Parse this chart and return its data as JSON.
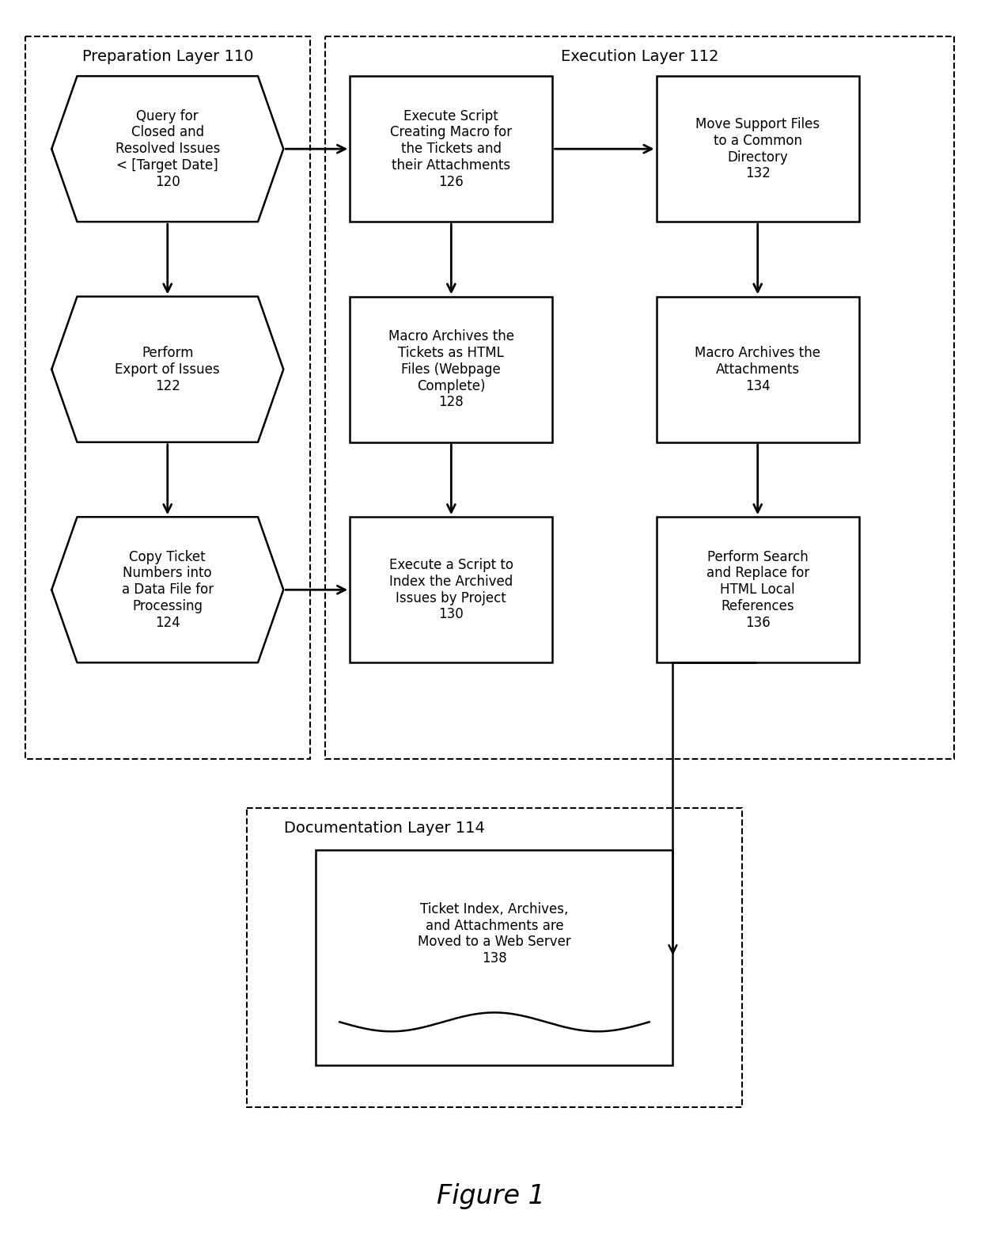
{
  "fig_width": 12.4,
  "fig_height": 15.82,
  "bg_color": "#ffffff",
  "title": "Figure 1",
  "title_fontsize": 24,
  "label_fontsize": 14,
  "small_fontsize": 12,
  "prep_layer_label": "Preparation Layer 110",
  "exec_layer_label": "Execution Layer 112",
  "doc_layer_label": "Documentation Layer 114",
  "hex120_text": "Query for\nClosed and\nResolved Issues\n< [Target Date]\n120",
  "hex122_text": "Perform\nExport of Issues\n122",
  "hex124_text": "Copy Ticket\nNumbers into\na Data File for\nProcessing\n124",
  "box126_text": "Execute Script\nCreating Macro for\nthe Tickets and\ntheir Attachments\n126",
  "box128_text": "Macro Archives the\nTickets as HTML\nFiles (Webpage\nComplete)\n128",
  "box130_text": "Execute a Script to\nIndex the Archived\nIssues by Project\n130",
  "box132_text": "Move Support Files\nto a Common\nDirectory\n132",
  "box134_text": "Macro Archives the\nAttachments\n134",
  "box136_text": "Perform Search\nand Replace for\nHTML Local\nReferences\n136",
  "box138_text": "Ticket Index, Archives,\nand Attachments are\nMoved to a Web Server\n138"
}
